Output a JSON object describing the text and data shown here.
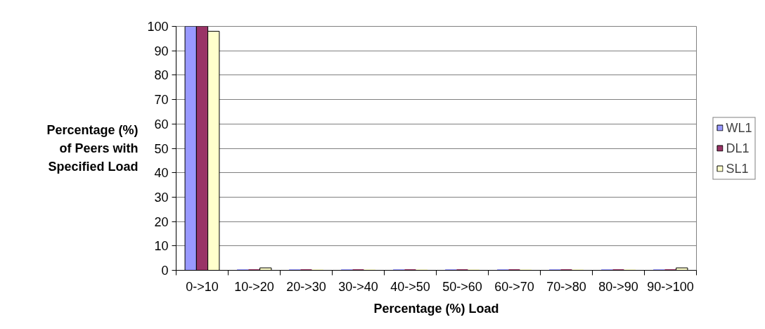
{
  "chart_data": {
    "type": "bar",
    "categories": [
      "0->10",
      "10->20",
      "20->30",
      "30->40",
      "40->50",
      "50->60",
      "60->70",
      "70->80",
      "80->90",
      "90->100"
    ],
    "series": [
      {
        "name": "WL1",
        "color": "#9999ff",
        "values": [
          100,
          0,
          0,
          0,
          0,
          0,
          0,
          0,
          0,
          0
        ]
      },
      {
        "name": "DL1",
        "color": "#993366",
        "values": [
          100,
          0,
          0,
          0,
          0,
          0,
          0,
          0,
          0,
          0
        ]
      },
      {
        "name": "SL1",
        "color": "#ffffcc",
        "values": [
          98,
          1,
          0,
          0,
          0,
          0,
          0,
          0,
          0,
          1
        ]
      }
    ],
    "xlabel": "Percentage (%) Load",
    "ylabel": "Percentage (%) of Peers with Specified Load",
    "ylim": [
      0,
      100
    ],
    "yticks": [
      0,
      10,
      20,
      30,
      40,
      50,
      60,
      70,
      80,
      90,
      100
    ],
    "grid": "y",
    "legend": "right"
  }
}
